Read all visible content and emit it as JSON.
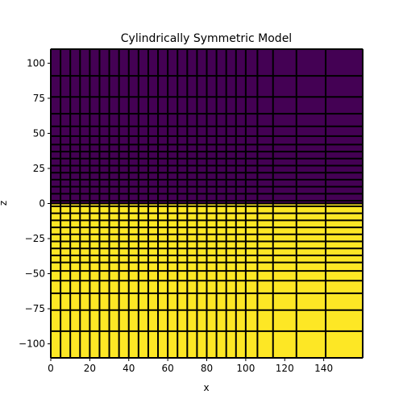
{
  "chart_data": {
    "type": "heatmap",
    "title": "Cylindrically Symmetric Model",
    "xlabel": "x",
    "ylabel": "z",
    "xlim": [
      0,
      160
    ],
    "ylim": [
      -110,
      110
    ],
    "xticks": [
      0,
      20,
      40,
      60,
      80,
      100,
      120,
      140
    ],
    "yticks": [
      100,
      75,
      50,
      25,
      0,
      -25,
      -50,
      -75,
      -100
    ],
    "x_edges": [
      0,
      5,
      10,
      15,
      20,
      25,
      30,
      35,
      40,
      45,
      50,
      55,
      60,
      65,
      70,
      75,
      80,
      85,
      90,
      95,
      100,
      106,
      114,
      126,
      141,
      160
    ],
    "z_edges": [
      -110,
      -91,
      -76,
      -64,
      -55,
      -48,
      -42,
      -37,
      -32,
      -27,
      -22,
      -17,
      -12,
      -7,
      -2,
      0,
      2,
      7,
      12,
      17,
      22,
      27,
      32,
      37,
      42,
      48,
      55,
      64,
      76,
      91,
      110
    ],
    "regions": [
      {
        "label": "z > 0",
        "z_range": [
          0,
          110
        ],
        "color": "#440154"
      },
      {
        "label": "z < 0",
        "z_range": [
          -110,
          0
        ],
        "color": "#fde725"
      }
    ],
    "grid_line_color": "#000000"
  }
}
